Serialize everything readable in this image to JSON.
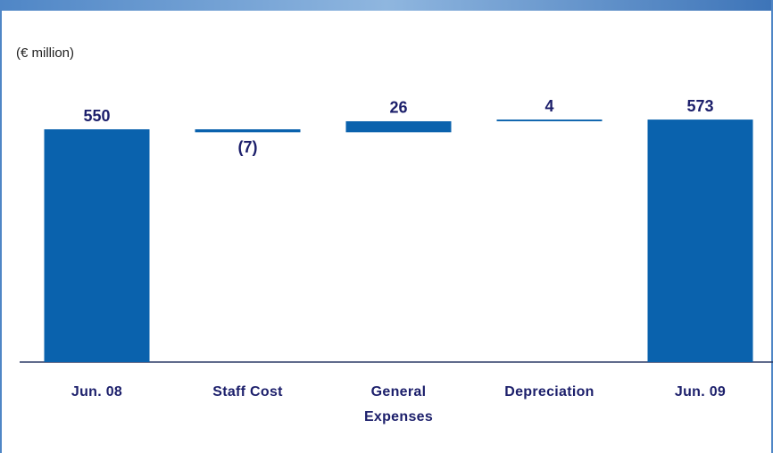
{
  "chart_data": {
    "type": "waterfall",
    "unit_label": "(€ million)",
    "categories": [
      "Jun. 08",
      "Staff Cost",
      "General Expenses",
      "Depreciation",
      "Jun. 09"
    ],
    "values": [
      550,
      -7,
      26,
      4,
      573
    ],
    "value_labels": [
      "550",
      "(7)",
      "26",
      "4",
      "573"
    ],
    "color": "#0a62ad"
  }
}
